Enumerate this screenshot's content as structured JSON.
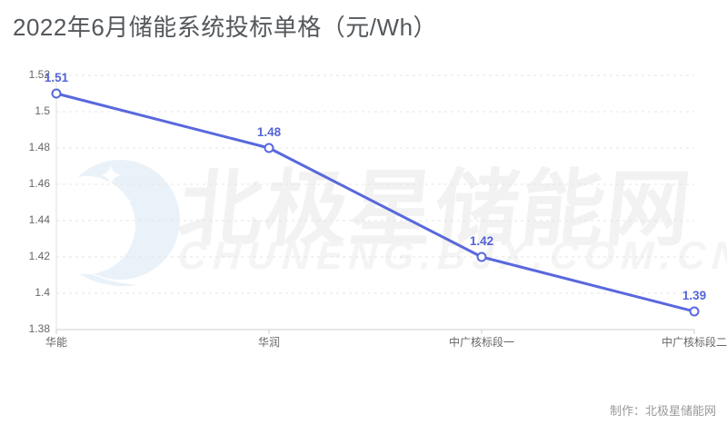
{
  "header": {
    "title": "2022年6月储能系统投标单格（元/Wh）"
  },
  "watermark": {
    "brand_text": "北极星储能网",
    "url_text": "CHUNENG.BJX.COM.CN",
    "logo": "bjx-moon-stars-logo"
  },
  "footer": {
    "credit": "制作：北极星储能网"
  },
  "colors": {
    "accent": "#5968dd",
    "data_label": "#5464d8",
    "title_text": "#54585c",
    "axis_text": "#666666",
    "grid_line": "#e4e4e4",
    "axis_line": "#cccccc",
    "vertical_axis_line": "#e0e0e0",
    "marker_fill": "#ffffff",
    "watermark_text": "#f2f2f2",
    "watermark_logo": "#eaf2f9",
    "credit_text": "#999999",
    "background": "#ffffff"
  },
  "chart_data": {
    "type": "line",
    "title": "2022年6月储能系统投标单格（元/Wh）",
    "categories": [
      "华能",
      "华润",
      "中广核标段一",
      "中广核标段二"
    ],
    "values": [
      1.51,
      1.48,
      1.42,
      1.39
    ],
    "point_labels": [
      "1.51",
      "1.48",
      "1.42",
      "1.39"
    ],
    "xlabel": "",
    "ylabel": "",
    "ylim": [
      1.38,
      1.52
    ],
    "yticks": [
      1.52,
      1.5,
      1.48,
      1.46,
      1.44,
      1.42,
      1.4,
      1.38
    ],
    "ytick_labels": [
      "1.52",
      "1.5",
      "1.48",
      "1.46",
      "1.44",
      "1.42",
      "1.4",
      "1.38"
    ],
    "grid": "horizontal-dashed",
    "legend": "none",
    "marker": "hollow-circle",
    "line_color": "#5968dd"
  }
}
